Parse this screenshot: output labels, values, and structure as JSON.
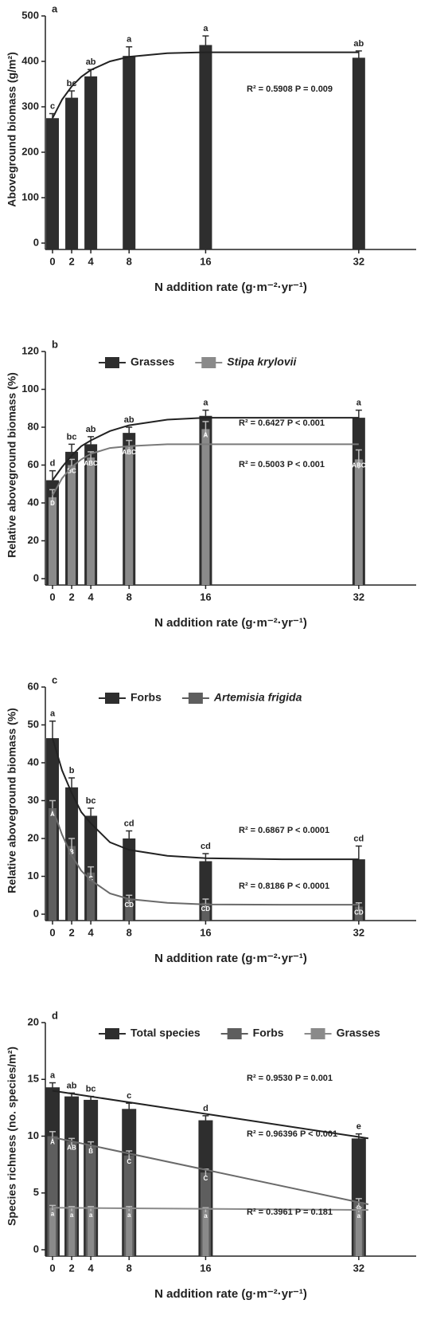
{
  "chart_data": [
    {
      "type": "bar",
      "panel_label": "a",
      "ylabel": "Aboveground biomass (g/m²)",
      "xlabel": "N addition rate (g·m⁻²·yr⁻¹)",
      "x": [
        0,
        2,
        4,
        8,
        16,
        32
      ],
      "xlim": [
        -0.75,
        38
      ],
      "xticks": [
        0,
        2,
        4,
        8,
        16,
        32
      ],
      "ylim": [
        0,
        500
      ],
      "yticks": [
        0,
        100,
        200,
        300,
        400,
        500
      ],
      "series": [
        {
          "color": "#2e2e2e",
          "values": [
            275,
            320,
            367,
            412,
            436,
            408
          ],
          "errors": [
            10,
            15,
            15,
            20,
            20,
            15
          ],
          "letters": [
            "c",
            "bc",
            "ab",
            "a",
            "a",
            "ab"
          ]
        }
      ],
      "fits": [
        {
          "color": "#222222",
          "x": [
            0,
            1,
            2,
            3,
            4,
            6,
            8,
            12,
            16,
            24,
            32
          ],
          "values": [
            275,
            316,
            345,
            366,
            381,
            400,
            410,
            418,
            420,
            420,
            420
          ]
        }
      ],
      "annotations": [
        "R² = 0.5908   P = 0.009"
      ]
    },
    {
      "type": "bar",
      "panel_label": "b",
      "ylabel": "Relative aboveground biomass (%)",
      "xlabel": "N addition rate (g·m⁻²·yr⁻¹)",
      "x": [
        0,
        2,
        4,
        8,
        16,
        32
      ],
      "xlim": [
        -0.75,
        38
      ],
      "xticks": [
        0,
        2,
        4,
        8,
        16,
        32
      ],
      "ylim": [
        0,
        120
      ],
      "yticks": [
        0,
        20,
        40,
        60,
        80,
        100,
        120
      ],
      "series": [
        {
          "name": "Grasses",
          "color": "#2e2e2e",
          "values": [
            52,
            67,
            71,
            77,
            86,
            85
          ],
          "errors": [
            5,
            4,
            4,
            3,
            3,
            4
          ],
          "letters": [
            "d",
            "bc",
            "ab",
            "ab",
            "a",
            "a"
          ]
        },
        {
          "name": "Stipa krylovii",
          "italic": true,
          "color": "#8a8a8a",
          "values": [
            43,
            60,
            64,
            70,
            79,
            63
          ],
          "errors": [
            4,
            3,
            3,
            3,
            4,
            5
          ],
          "letters": [
            "D",
            "BC",
            "ABC",
            "ABC",
            "A",
            "ABC"
          ]
        }
      ],
      "fits": [
        {
          "color": "#222222",
          "x": [
            0,
            1,
            2,
            3,
            4,
            6,
            8,
            12,
            16,
            24,
            32
          ],
          "values": [
            52,
            59,
            65,
            70,
            73,
            78,
            81,
            84,
            85,
            85,
            85
          ]
        },
        {
          "color": "#7a7a7a",
          "x": [
            0,
            1,
            2,
            3,
            4,
            6,
            8,
            12,
            16,
            24,
            32
          ],
          "values": [
            44,
            53,
            59,
            63,
            66,
            69,
            70,
            71,
            71,
            71,
            71
          ]
        }
      ],
      "annotations": [
        "R² = 0.6427   P < 0.001",
        "R² = 0.5003   P < 0.001"
      ]
    },
    {
      "type": "bar",
      "panel_label": "c",
      "ylabel": "Relative aboveground biomass (%)",
      "xlabel": "N addition rate (g·m⁻²·yr⁻¹)",
      "x": [
        0,
        2,
        4,
        8,
        16,
        32
      ],
      "xlim": [
        -0.75,
        38
      ],
      "xticks": [
        0,
        2,
        4,
        8,
        16,
        32
      ],
      "ylim": [
        0,
        60
      ],
      "yticks": [
        0,
        10,
        20,
        30,
        40,
        50,
        60
      ],
      "series": [
        {
          "name": "Forbs",
          "color": "#2e2e2e",
          "values": [
            46.5,
            33.5,
            26,
            20,
            14,
            14.5
          ],
          "errors": [
            4.5,
            2.5,
            2,
            2,
            2,
            3.5
          ],
          "letters": [
            "a",
            "b",
            "bc",
            "cd",
            "cd",
            "cd"
          ]
        },
        {
          "name": "Artemisia frigida",
          "italic": true,
          "color": "#5e5e5e",
          "values": [
            28,
            18,
            11,
            4,
            3,
            2
          ],
          "errors": [
            2,
            2,
            1.5,
            1,
            1,
            1
          ],
          "letters": [
            "A",
            "B",
            "C",
            "CD",
            "CD",
            "CD"
          ]
        }
      ],
      "fits": [
        {
          "color": "#222222",
          "x": [
            0,
            1,
            2,
            3,
            4,
            6,
            8,
            12,
            16,
            24,
            32
          ],
          "values": [
            46.5,
            38,
            32,
            27,
            24,
            19,
            17,
            15.4,
            14.8,
            14.5,
            14.5
          ]
        },
        {
          "color": "#6a6a6a",
          "x": [
            0,
            1,
            2,
            3,
            4,
            6,
            8,
            12,
            16,
            24,
            32
          ],
          "values": [
            28,
            21,
            15.5,
            11.5,
            9,
            5.5,
            4,
            3,
            2.6,
            2.5,
            2.5
          ]
        }
      ],
      "annotations": [
        "R² = 0.6867   P < 0.0001",
        "R² = 0.8186   P < 0.0001"
      ]
    },
    {
      "type": "bar",
      "panel_label": "d",
      "ylabel": "Species richness (no. species/m²)",
      "xlabel": "N addition rate (g·m⁻²·yr⁻¹)",
      "x": [
        0,
        2,
        4,
        8,
        16,
        32
      ],
      "xlim": [
        -0.75,
        38
      ],
      "xticks": [
        0,
        2,
        4,
        8,
        16,
        32
      ],
      "ylim": [
        0,
        20
      ],
      "yticks": [
        0,
        5,
        10,
        15,
        20
      ],
      "series": [
        {
          "name": "Total species",
          "color": "#2e2e2e",
          "values": [
            14.3,
            13.5,
            13.2,
            12.4,
            11.4,
            9.8
          ],
          "errors": [
            0.4,
            0.3,
            0.3,
            0.5,
            0.4,
            0.4
          ],
          "letters": [
            "a",
            "ab",
            "bc",
            "c",
            "d",
            "e"
          ]
        },
        {
          "name": "Forbs",
          "color": "#5e5e5e",
          "values": [
            10,
            9.5,
            9.2,
            8.3,
            6.8,
            4.2
          ],
          "errors": [
            0.4,
            0.3,
            0.3,
            0.4,
            0.3,
            0.3
          ],
          "letters": [
            "A",
            "AB",
            "B",
            "C",
            "C",
            "D"
          ]
        },
        {
          "name": "Grasses",
          "color": "#8a8a8a",
          "values": [
            3.7,
            3.6,
            3.6,
            3.6,
            3.5,
            3.5
          ],
          "errors": [
            0.2,
            0.2,
            0.2,
            0.2,
            0.2,
            0.2
          ],
          "letters": [
            "a",
            "a",
            "a",
            "a",
            "a",
            "a"
          ]
        }
      ],
      "fits": [
        {
          "color": "#222222",
          "x": [
            0,
            33
          ],
          "values": [
            14.0,
            9.8
          ]
        },
        {
          "color": "#6a6a6a",
          "x": [
            0,
            33
          ],
          "values": [
            9.9,
            4.0
          ]
        },
        {
          "color": "#8a8a8a",
          "x": [
            0,
            33
          ],
          "values": [
            3.7,
            3.5
          ]
        }
      ],
      "annotations": [
        "R² = 0.9530   P = 0.001",
        "R² = 0.96396   P < 0.001",
        "R² = 0.3961   P = 0.181"
      ]
    }
  ]
}
